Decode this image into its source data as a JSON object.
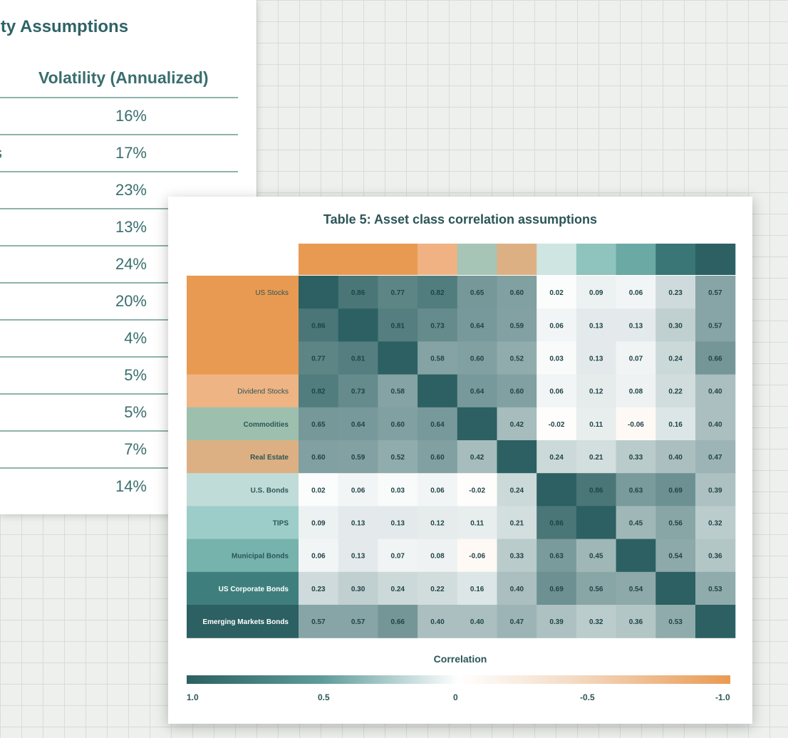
{
  "volatility_table": {
    "title": "s Volatility Assumptions",
    "column_header": "Volatility (Annualized)",
    "rows": [
      {
        "label": "",
        "value": "16%"
      },
      {
        "label": "s",
        "value": "17%"
      },
      {
        "label": "",
        "value": "23%"
      },
      {
        "label": "",
        "value": "13%"
      },
      {
        "label": "",
        "value": "24%"
      },
      {
        "label": "",
        "value": "20%"
      },
      {
        "label": "",
        "value": "4%"
      },
      {
        "label": "",
        "value": "5%"
      },
      {
        "label": "",
        "value": "5%"
      },
      {
        "label": "",
        "value": "7%"
      },
      {
        "label": "",
        "value": "14%"
      }
    ]
  },
  "chart_data": {
    "type": "heatmap",
    "title": "Table 5: Asset class correlation assumptions",
    "legend_title": "Correlation",
    "legend_ticks": [
      "1.0",
      "0.5",
      "0",
      "-0.5",
      "-1.0"
    ],
    "colorscale": {
      "high": "#2c6062",
      "mid": "#ffffff",
      "low": "#e99a52"
    },
    "rows": [
      "US Stocks",
      "",
      "",
      "Dividend Stocks",
      "Commodities",
      "Real Estate",
      "U.S. Bonds",
      "TIPS",
      "Municipal Bonds",
      "US Corporate Bonds",
      "Emerging Markets Bonds"
    ],
    "values": [
      [
        1.0,
        0.86,
        0.77,
        0.82,
        0.65,
        0.6,
        0.02,
        0.09,
        0.06,
        0.23,
        0.57
      ],
      [
        0.86,
        1.0,
        0.81,
        0.73,
        0.64,
        0.59,
        0.06,
        0.13,
        0.13,
        0.3,
        0.57
      ],
      [
        0.77,
        0.81,
        1.0,
        0.58,
        0.6,
        0.52,
        0.03,
        0.13,
        0.07,
        0.24,
        0.66
      ],
      [
        0.82,
        0.73,
        0.58,
        1.0,
        0.64,
        0.6,
        0.06,
        0.12,
        0.08,
        0.22,
        0.4
      ],
      [
        0.65,
        0.64,
        0.6,
        0.64,
        1.0,
        0.42,
        -0.02,
        0.11,
        -0.06,
        0.16,
        0.4
      ],
      [
        0.6,
        0.59,
        0.52,
        0.6,
        0.42,
        1.0,
        0.24,
        0.21,
        0.33,
        0.4,
        0.47
      ],
      [
        0.02,
        0.06,
        0.03,
        0.06,
        -0.02,
        0.24,
        1.0,
        0.86,
        0.63,
        0.69,
        0.39
      ],
      [
        0.09,
        0.13,
        0.13,
        0.12,
        0.11,
        0.21,
        0.86,
        1.0,
        0.45,
        0.56,
        0.32
      ],
      [
        0.06,
        0.13,
        0.07,
        0.08,
        -0.06,
        0.33,
        0.63,
        0.45,
        1.0,
        0.54,
        0.36
      ],
      [
        0.23,
        0.3,
        0.24,
        0.22,
        0.16,
        0.4,
        0.69,
        0.56,
        0.54,
        1.0,
        0.53
      ],
      [
        0.57,
        0.57,
        0.66,
        0.4,
        0.4,
        0.47,
        0.39,
        0.32,
        0.36,
        0.53,
        1.0
      ]
    ],
    "row_header_colors": [
      "#e99a52",
      "#e99a52",
      "#e99a52",
      "#efb484",
      "#9dbfae",
      "#ddb083",
      "#c0dcd8",
      "#9ccdc8",
      "#76b3ad",
      "#3e7f7e",
      "#2c6062"
    ],
    "column_header_colors": [
      "#e99a52",
      "#e99a52",
      "#e99a52",
      "#f0b282",
      "#a6c5b6",
      "#ddb083",
      "#cfe5e2",
      "#8fc3bd",
      "#6aa9a4",
      "#3a7676",
      "#2c6062"
    ]
  }
}
